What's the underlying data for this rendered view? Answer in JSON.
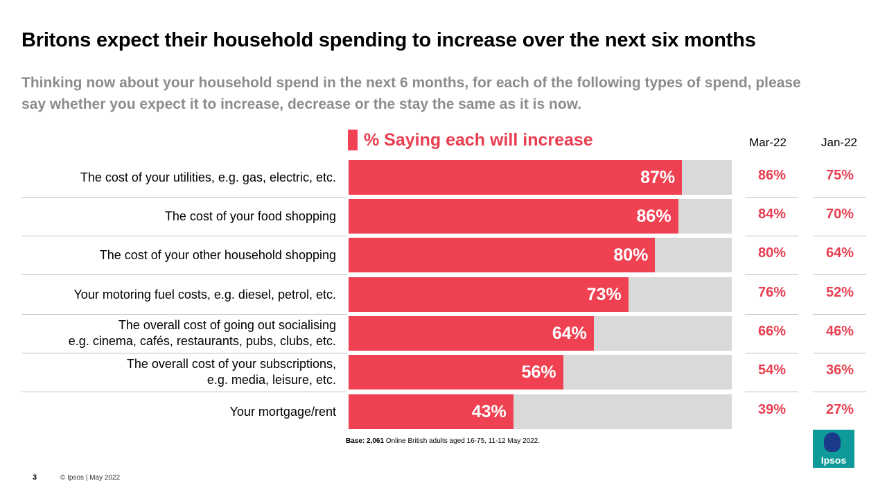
{
  "header": {
    "title": "Britons expect their household spending to increase over the next six months",
    "subtitle": "Thinking now about your household spend in the next 6 months, for each of the following types of spend, please say whether you expect it to increase, decrease or the stay the same as it is now."
  },
  "chart_data": {
    "type": "bar",
    "orientation": "horizontal",
    "title": "% Saying each will increase",
    "value_suffix": "%",
    "xlim": [
      0,
      100
    ],
    "categories": [
      [
        "The cost of your utilities, e.g. gas, electric, etc."
      ],
      [
        "The cost of your food shopping"
      ],
      [
        "The cost of your other household shopping"
      ],
      [
        "Your motoring fuel costs, e.g. diesel, petrol, etc."
      ],
      [
        "The overall cost of going out socialising",
        "e.g. cinema, cafés, restaurants, pubs, clubs, etc."
      ],
      [
        "The overall cost of your subscriptions,",
        "e.g. media, leisure, etc."
      ],
      [
        "Your mortgage/rent"
      ]
    ],
    "values": [
      87,
      86,
      80,
      73,
      64,
      56,
      43
    ],
    "comparison_series": [
      {
        "name": "Mar-22",
        "values": [
          86,
          84,
          80,
          76,
          66,
          54,
          39
        ]
      },
      {
        "name": "Jan-22",
        "values": [
          75,
          70,
          64,
          52,
          46,
          36,
          27
        ]
      }
    ],
    "bar_color": "#f04152",
    "track_color": "#d9d9d9"
  },
  "legend": {
    "label": "% Saying each will increase",
    "color": "#f04152"
  },
  "footer": {
    "base_bold": "Base: 2,061",
    "base_rest": " Online British adults aged 16-75, 11-12 May 2022.",
    "page_number": "3",
    "copyright": "© Ipsos | May 2022",
    "logo_text": "Ipsos"
  },
  "colors": {
    "accent": "#e83e50",
    "subtitle": "#8c8c8c",
    "logo": "#0f9a9a"
  }
}
